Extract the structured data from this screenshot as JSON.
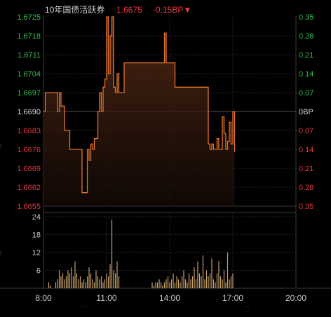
{
  "header": {
    "name": "10年国债活跃券",
    "price": "1.6675",
    "change": "-0.15BP▼"
  },
  "colors": {
    "background": "#000000",
    "grid": "#262626",
    "axis": "#3a3a3a",
    "price_line": "#e8742a",
    "fill_top": "#5a2c17",
    "up": "#2fbf4f",
    "down": "#e8383d",
    "neutral": "#d9d9d9",
    "volume": "#c8a06a",
    "text": "#c8c8c8",
    "title": "#cfcfcf"
  },
  "chart_data": [
    {
      "type": "line",
      "series_role": "price",
      "y_left_ticks": [
        "1.6725",
        "1.6718",
        "1.6711",
        "1.6704",
        "1.6697",
        "1.6690",
        "1.6683",
        "1.6676",
        "1.6669",
        "1.6662",
        "1.6655"
      ],
      "y_right_ticks": [
        "0.35",
        "0.28",
        "0.21",
        "0.14",
        "0.07",
        "0BP",
        "0.07",
        "0.14",
        "0.21",
        "0.28",
        "0.35"
      ],
      "ylim": [
        1.6655,
        1.6725
      ],
      "reference": 1.669,
      "xlim": [
        0,
        720
      ],
      "x": [
        0,
        4,
        5,
        10,
        15,
        20,
        25,
        30,
        35,
        40,
        45,
        50,
        55,
        60,
        65,
        70,
        75,
        80,
        85,
        90,
        95,
        100,
        105,
        110,
        115,
        120,
        125,
        130,
        135,
        140,
        145,
        150,
        155,
        160,
        165,
        170,
        175,
        180,
        185,
        190,
        195,
        200,
        205,
        210,
        215,
        220,
        225,
        230,
        235,
        240,
        245,
        250,
        255,
        260,
        265,
        270,
        275,
        280,
        285,
        290,
        295,
        300,
        305,
        310,
        315,
        320,
        325,
        330,
        335,
        340,
        345,
        350,
        355,
        360,
        365,
        370,
        375,
        380,
        385,
        390,
        395,
        400,
        405,
        410,
        415,
        420,
        425,
        430,
        435,
        440,
        445,
        450,
        455,
        460,
        465,
        470,
        475,
        480,
        485,
        490,
        495,
        500,
        505,
        510,
        515,
        520,
        525,
        530,
        535,
        540,
        545
      ],
      "values": [
        1.669,
        1.669,
        1.6697,
        1.6697,
        1.6697,
        1.6697,
        1.6697,
        1.6697,
        1.6697,
        1.669,
        1.6697,
        1.6692,
        1.6692,
        1.6683,
        1.6683,
        1.6683,
        1.6676,
        1.6676,
        1.6676,
        1.6676,
        1.6676,
        1.6676,
        1.6676,
        1.666,
        1.666,
        1.666,
        1.6676,
        1.6672,
        1.6678,
        1.6676,
        1.668,
        1.668,
        1.669,
        1.6697,
        1.669,
        1.6699,
        1.6702,
        1.6725,
        1.6704,
        1.6718,
        1.6725,
        1.6699,
        1.6697,
        1.6704,
        1.6697,
        1.6697,
        1.6697,
        1.6708,
        1.6708,
        1.6708,
        1.6708,
        1.6708,
        1.6708,
        1.6708,
        1.6708,
        1.6708,
        1.6708,
        1.6708,
        1.6708,
        1.6708,
        1.6708,
        1.6708,
        1.6708,
        1.6708,
        1.6708,
        1.6708,
        1.6708,
        1.6708,
        1.6708,
        1.6708,
        1.6719,
        1.6708,
        1.6708,
        1.6708,
        1.6708,
        1.6708,
        1.6699,
        1.6699,
        1.6699,
        1.6699,
        1.6699,
        1.6699,
        1.6699,
        1.6699,
        1.6699,
        1.6699,
        1.6699,
        1.6699,
        1.6699,
        1.6699,
        1.6699,
        1.6699,
        1.6699,
        1.6699,
        1.6699,
        1.6678,
        1.6676,
        1.6678,
        1.6676,
        1.6676,
        1.668,
        1.6676,
        1.6676,
        1.6688,
        1.6682,
        1.6676,
        1.6679,
        1.6686,
        1.6678,
        1.669,
        1.6675
      ]
    },
    {
      "type": "bar",
      "series_role": "volume",
      "y_ticks": [
        "24",
        "18",
        "12",
        "6"
      ],
      "ylim": [
        0,
        24
      ],
      "x_ticks": [
        "8:00",
        "11:00",
        "14:00",
        "17:00",
        "20:00"
      ],
      "xlim": [
        0,
        720
      ],
      "x": [
        15,
        20,
        35,
        40,
        45,
        50,
        55,
        60,
        65,
        70,
        75,
        80,
        85,
        90,
        95,
        100,
        105,
        110,
        115,
        120,
        125,
        130,
        135,
        140,
        145,
        150,
        155,
        160,
        165,
        170,
        175,
        180,
        185,
        190,
        195,
        200,
        205,
        210,
        215,
        310,
        315,
        320,
        325,
        330,
        335,
        340,
        345,
        350,
        355,
        360,
        365,
        370,
        375,
        380,
        385,
        390,
        395,
        400,
        405,
        410,
        415,
        420,
        425,
        430,
        435,
        440,
        445,
        450,
        455,
        460,
        465,
        470,
        475,
        480,
        485,
        490,
        495,
        500,
        505,
        510,
        515,
        520,
        525,
        530,
        535,
        540
      ],
      "values": [
        2,
        1,
        2,
        3,
        6,
        4,
        5,
        3,
        4,
        6,
        5,
        7,
        4,
        9,
        5,
        3,
        4,
        2,
        3,
        2,
        4,
        7,
        5,
        3,
        2,
        6,
        4,
        3,
        4,
        2,
        3,
        5,
        4,
        8,
        23,
        6,
        5,
        9,
        4,
        2,
        1,
        2,
        2,
        3,
        2,
        1,
        2,
        3,
        4,
        2,
        3,
        5,
        2,
        4,
        3,
        2,
        4,
        6,
        3,
        2,
        5,
        3,
        4,
        7,
        3,
        9,
        5,
        4,
        11,
        3,
        6,
        4,
        5,
        10,
        3,
        2,
        5,
        9,
        4,
        3,
        6,
        2,
        12,
        3,
        4,
        5
      ]
    }
  ]
}
